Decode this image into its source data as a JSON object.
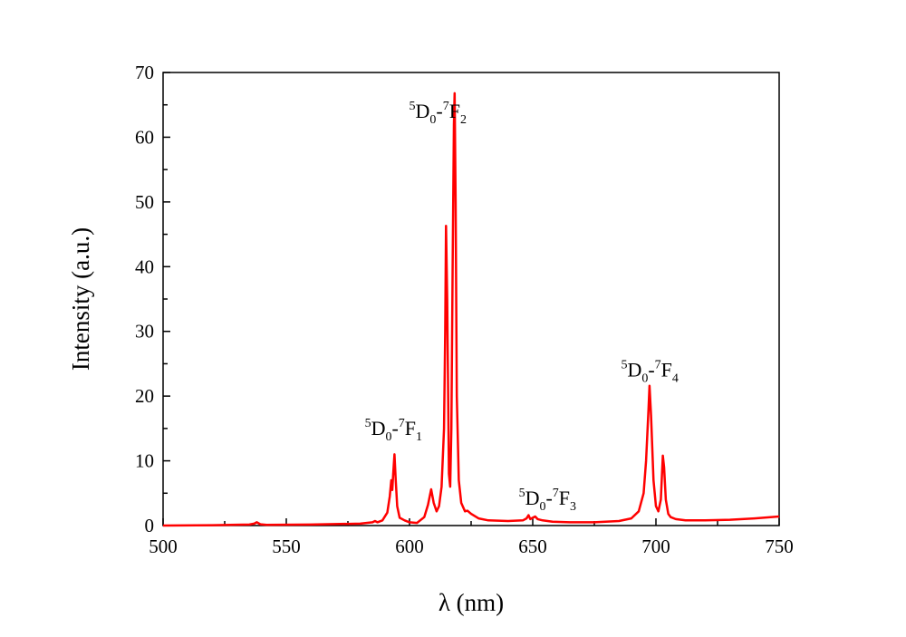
{
  "chart_data": {
    "type": "line",
    "xlabel": "λ (nm)",
    "ylabel": "Intensity (a.u.)",
    "xlim": [
      500,
      750
    ],
    "ylim": [
      0,
      70
    ],
    "x_ticks": [
      "500",
      "550",
      "600",
      "650",
      "700",
      "750"
    ],
    "y_ticks": [
      "0",
      "10",
      "20",
      "30",
      "40",
      "50",
      "60",
      "70"
    ],
    "grid": false,
    "series": [
      {
        "color": "#ff0000",
        "x": [
          500,
          520,
          535,
          537,
          538,
          539.5,
          542,
          560,
          580,
          585,
          586,
          587,
          589,
          591,
          592,
          592.6,
          593,
          593.4,
          593.9,
          594.4,
          595,
          596,
          598,
          600,
          603,
          606,
          607.5,
          608.8,
          609.8,
          611,
          612,
          613,
          614,
          614.5,
          614.8,
          615.3,
          616,
          616.5,
          617,
          617.5,
          618,
          618.3,
          618.7,
          619.2,
          620,
          621,
          622.5,
          623.5,
          625,
          628,
          632,
          640,
          646,
          647.5,
          648.3,
          649,
          650,
          651,
          652,
          654,
          658,
          665,
          675,
          685,
          690,
          693,
          695,
          696,
          697,
          697.4,
          698,
          699,
          700,
          701,
          702,
          702.8,
          703.3,
          704,
          705,
          706,
          708,
          712,
          720,
          730,
          740,
          750
        ],
        "y": [
          0.0,
          0.05,
          0.15,
          0.3,
          0.5,
          0.2,
          0.1,
          0.15,
          0.3,
          0.5,
          0.7,
          0.5,
          0.8,
          2,
          4.5,
          7,
          5.5,
          8,
          11,
          7,
          3,
          1.2,
          0.8,
          0.5,
          0.4,
          1.3,
          3.2,
          5.6,
          3.5,
          2.2,
          3,
          6,
          15,
          30,
          46.3,
          35,
          8,
          6,
          15,
          40,
          62,
          66.8,
          50,
          20,
          7,
          3.5,
          2.2,
          2.3,
          1.8,
          1.1,
          0.8,
          0.7,
          0.8,
          1.1,
          1.6,
          1.0,
          1.2,
          1.4,
          1.0,
          0.8,
          0.6,
          0.5,
          0.5,
          0.7,
          1.1,
          2.2,
          5,
          10,
          18,
          21.6,
          17,
          7,
          3,
          2.2,
          4,
          10.8,
          9,
          4,
          1.8,
          1.3,
          1.0,
          0.8,
          0.8,
          0.9,
          1.1,
          1.4
        ]
      }
    ],
    "annotations": [
      {
        "x": 593.5,
        "y": 14.0,
        "pre": "5",
        "a": "D",
        "a_sub": "0",
        "dash": "-",
        "b_pre": "7",
        "b": "F",
        "b_sub": "1"
      },
      {
        "x": 611.5,
        "y": 63.0,
        "pre": "5",
        "a": "D",
        "a_sub": "0",
        "dash": "-",
        "b_pre": "7",
        "b": "F",
        "b_sub": "2"
      },
      {
        "x": 656.0,
        "y": 3.2,
        "pre": "5",
        "a": "D",
        "a_sub": "0",
        "dash": "-",
        "b_pre": "7",
        "b": "F",
        "b_sub": "3"
      },
      {
        "x": 697.5,
        "y": 23.0,
        "pre": "5",
        "a": "D",
        "a_sub": "0",
        "dash": "-",
        "b_pre": "7",
        "b": "F",
        "b_sub": "4"
      }
    ]
  }
}
